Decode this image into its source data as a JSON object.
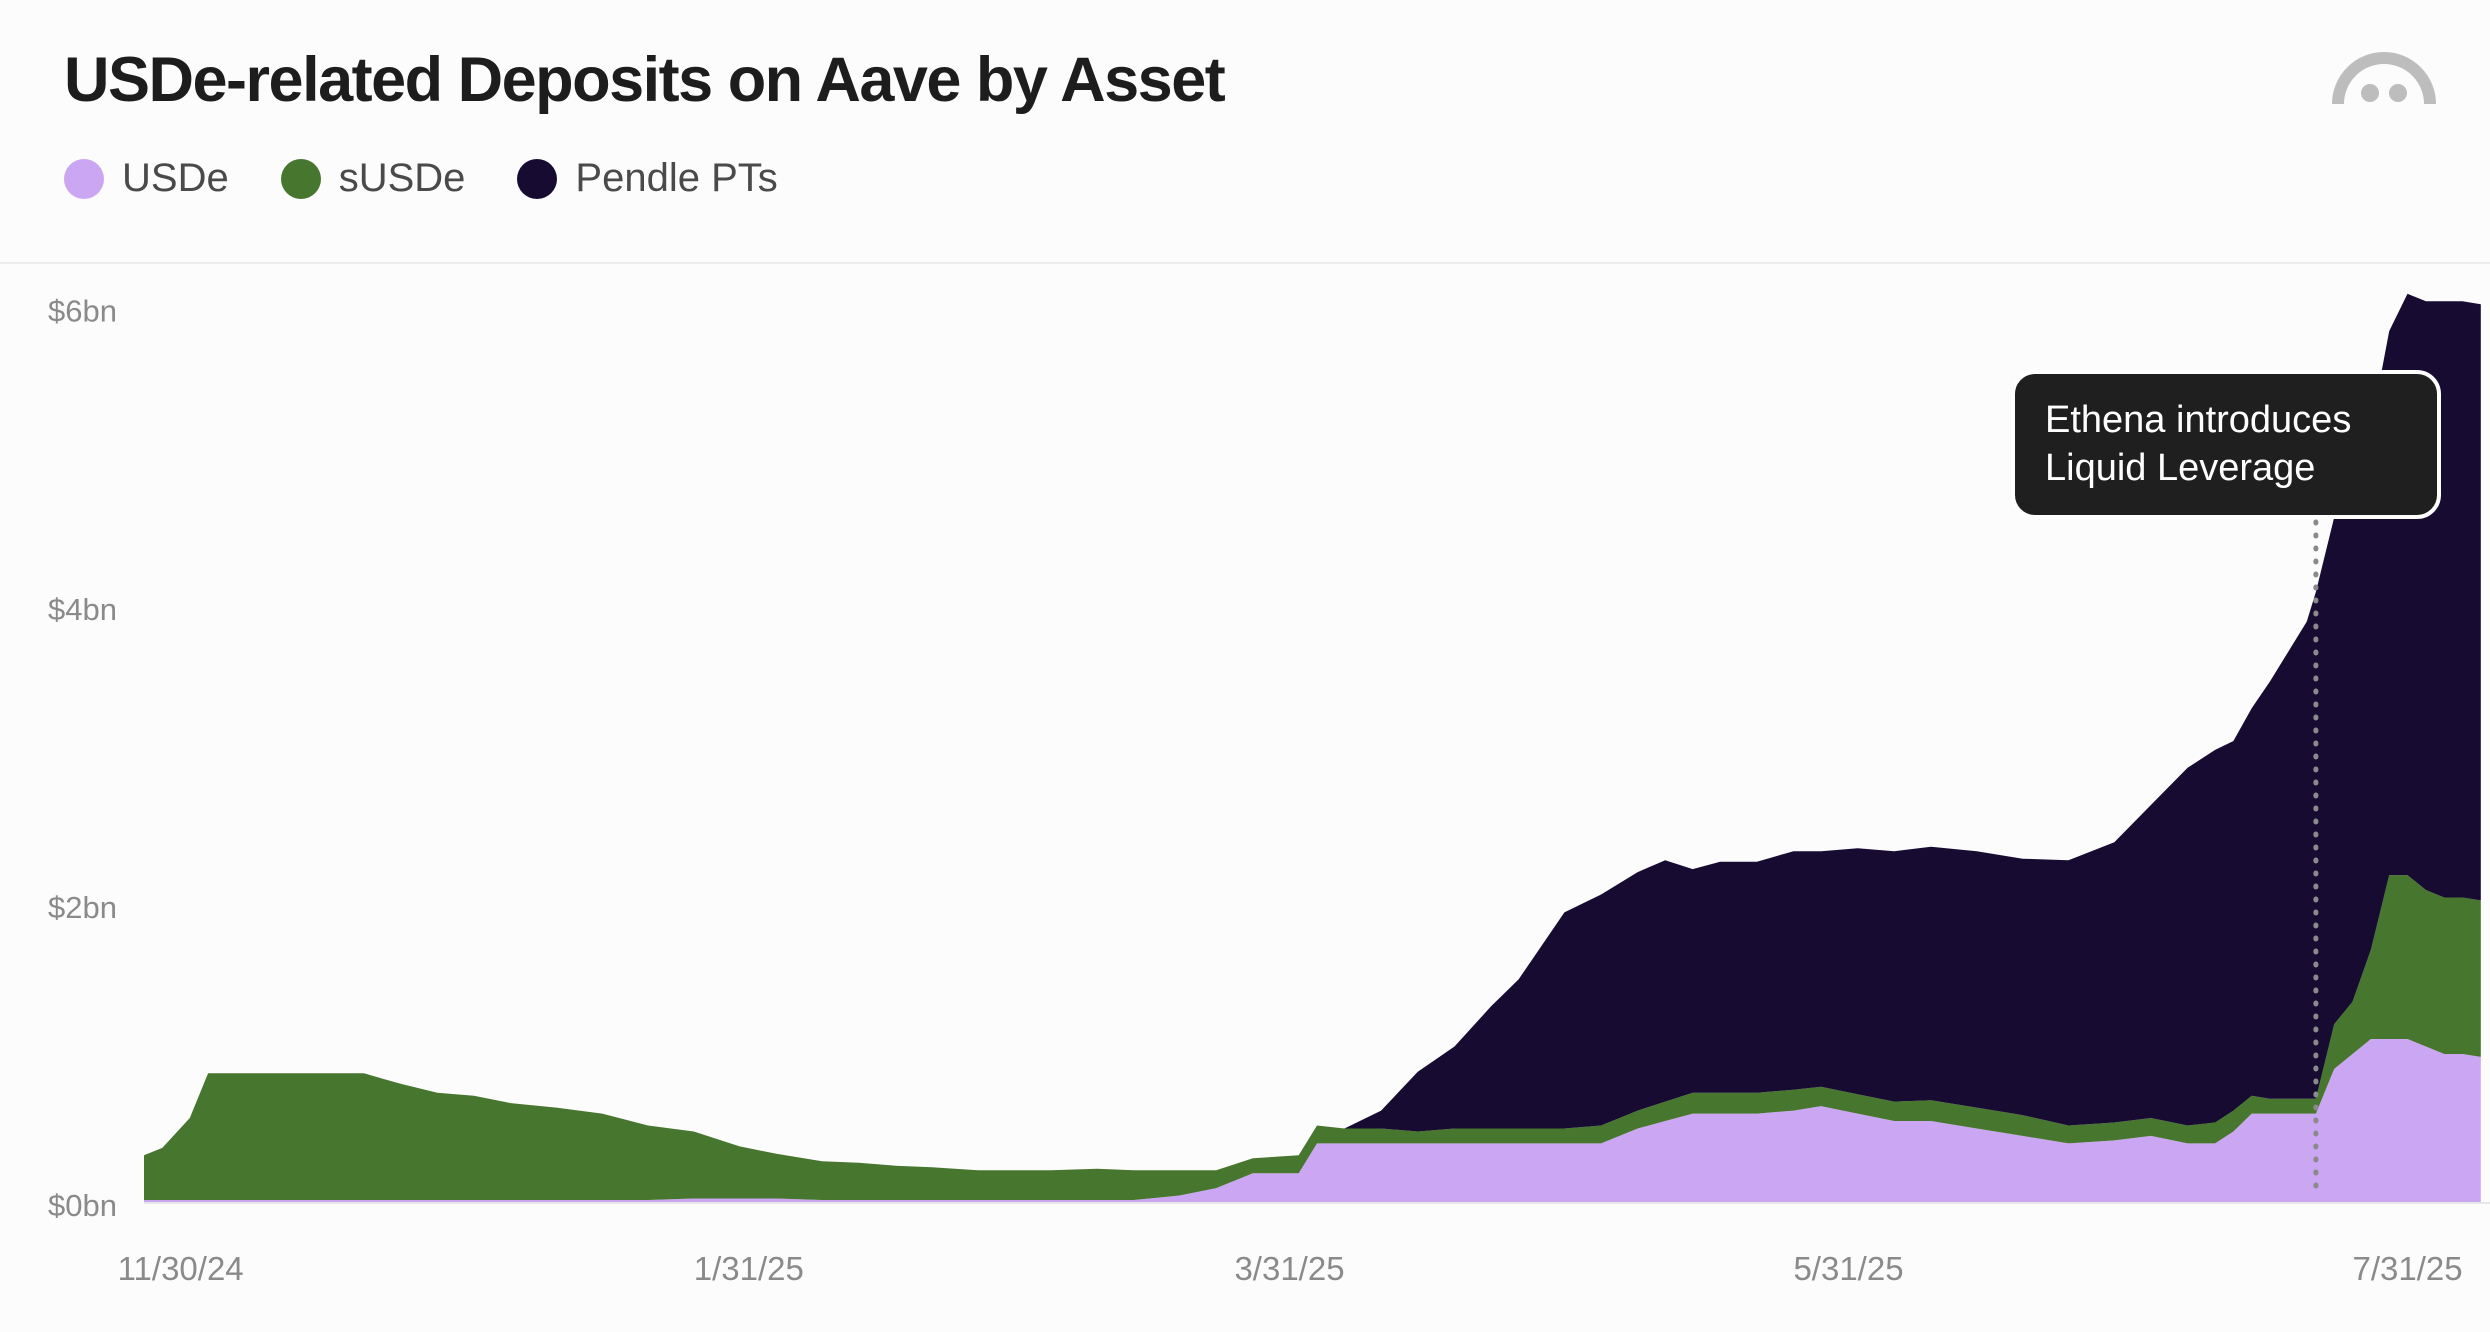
{
  "header": {
    "title": "USDe-related Deposits on Aave by Asset"
  },
  "legend": [
    {
      "label": "USDe",
      "color": "#cba6f2"
    },
    {
      "label": "sUSDe",
      "color": "#47762f"
    },
    {
      "label": "Pendle PTs",
      "color": "#170b31"
    }
  ],
  "logo": {
    "icon": "ethena-logo-icon"
  },
  "chart_data": {
    "type": "area",
    "stacked": true,
    "title": "USDe-related Deposits on Aave by Asset",
    "xlabel": "",
    "ylabel": "",
    "x_range": [
      "2024-11-26",
      "2025-08-09"
    ],
    "ylim": [
      0,
      6.3
    ],
    "y_ticks": [
      {
        "value": 0,
        "label": "$0bn"
      },
      {
        "value": 2,
        "label": "$2bn"
      },
      {
        "value": 4,
        "label": "$4bn"
      },
      {
        "value": 6,
        "label": "$6bn"
      }
    ],
    "x_ticks": [
      {
        "date": "2024-11-30",
        "label": "11/30/24"
      },
      {
        "date": "2025-01-31",
        "label": "1/31/25"
      },
      {
        "date": "2025-03-31",
        "label": "3/31/25"
      },
      {
        "date": "2025-05-31",
        "label": "5/31/25"
      },
      {
        "date": "2025-07-31",
        "label": "7/31/25"
      }
    ],
    "grid": false,
    "legend_position": "top-left",
    "x": [
      "2024-11-26",
      "2024-11-28",
      "2024-12-01",
      "2024-12-03",
      "2024-12-05",
      "2024-12-10",
      "2024-12-15",
      "2024-12-20",
      "2024-12-24",
      "2024-12-28",
      "2025-01-01",
      "2025-01-05",
      "2025-01-10",
      "2025-01-15",
      "2025-01-20",
      "2025-01-25",
      "2025-01-30",
      "2025-02-03",
      "2025-02-08",
      "2025-02-12",
      "2025-02-16",
      "2025-02-20",
      "2025-02-25",
      "2025-03-01",
      "2025-03-05",
      "2025-03-10",
      "2025-03-14",
      "2025-03-19",
      "2025-03-23",
      "2025-03-27",
      "2025-04-01",
      "2025-04-03",
      "2025-04-06",
      "2025-04-10",
      "2025-04-14",
      "2025-04-18",
      "2025-04-22",
      "2025-04-25",
      "2025-04-27",
      "2025-04-30",
      "2025-05-04",
      "2025-05-08",
      "2025-05-11",
      "2025-05-14",
      "2025-05-17",
      "2025-05-21",
      "2025-05-25",
      "2025-05-28",
      "2025-06-01",
      "2025-06-05",
      "2025-06-09",
      "2025-06-14",
      "2025-06-19",
      "2025-06-24",
      "2025-06-29",
      "2025-07-03",
      "2025-07-07",
      "2025-07-10",
      "2025-07-12",
      "2025-07-14",
      "2025-07-16",
      "2025-07-18",
      "2025-07-20",
      "2025-07-21",
      "2025-07-23",
      "2025-07-25",
      "2025-07-27",
      "2025-07-29",
      "2025-07-31",
      "2025-08-02",
      "2025-08-04",
      "2025-08-06",
      "2025-08-08"
    ],
    "series": [
      {
        "name": "USDe",
        "color": "#cba6f2",
        "values": [
          0.02,
          0.02,
          0.02,
          0.02,
          0.02,
          0.02,
          0.02,
          0.02,
          0.02,
          0.02,
          0.02,
          0.02,
          0.02,
          0.02,
          0.02,
          0.03,
          0.03,
          0.03,
          0.02,
          0.02,
          0.02,
          0.02,
          0.02,
          0.02,
          0.02,
          0.02,
          0.02,
          0.05,
          0.1,
          0.2,
          0.2,
          0.4,
          0.4,
          0.4,
          0.4,
          0.4,
          0.4,
          0.4,
          0.4,
          0.4,
          0.4,
          0.5,
          0.55,
          0.6,
          0.6,
          0.6,
          0.62,
          0.65,
          0.6,
          0.55,
          0.55,
          0.5,
          0.45,
          0.4,
          0.42,
          0.45,
          0.4,
          0.4,
          0.48,
          0.6,
          0.6,
          0.6,
          0.6,
          0.6,
          0.9,
          1.0,
          1.1,
          1.1,
          1.1,
          1.05,
          1.0,
          1.0,
          0.98
        ]
      },
      {
        "name": "sUSDe",
        "color": "#47762f",
        "values": [
          0.3,
          0.35,
          0.55,
          0.85,
          0.85,
          0.85,
          0.85,
          0.85,
          0.78,
          0.72,
          0.7,
          0.65,
          0.62,
          0.58,
          0.5,
          0.45,
          0.35,
          0.3,
          0.26,
          0.25,
          0.23,
          0.22,
          0.2,
          0.2,
          0.2,
          0.21,
          0.2,
          0.17,
          0.12,
          0.1,
          0.12,
          0.12,
          0.1,
          0.1,
          0.08,
          0.1,
          0.1,
          0.1,
          0.1,
          0.1,
          0.12,
          0.12,
          0.13,
          0.14,
          0.14,
          0.14,
          0.14,
          0.13,
          0.13,
          0.13,
          0.14,
          0.14,
          0.14,
          0.12,
          0.12,
          0.12,
          0.12,
          0.14,
          0.14,
          0.12,
          0.1,
          0.1,
          0.1,
          0.1,
          0.3,
          0.35,
          0.6,
          1.1,
          1.1,
          1.05,
          1.05,
          1.05,
          1.05
        ]
      },
      {
        "name": "Pendle PTs",
        "color": "#170b31",
        "values": [
          0,
          0,
          0,
          0,
          0,
          0,
          0,
          0,
          0,
          0,
          0,
          0,
          0,
          0,
          0,
          0,
          0,
          0,
          0,
          0,
          0,
          0,
          0,
          0,
          0,
          0,
          0,
          0,
          0,
          0,
          0,
          0,
          0,
          0.12,
          0.4,
          0.55,
          0.82,
          1.0,
          1.18,
          1.45,
          1.55,
          1.6,
          1.62,
          1.5,
          1.55,
          1.55,
          1.6,
          1.58,
          1.65,
          1.68,
          1.7,
          1.72,
          1.72,
          1.78,
          1.88,
          2.1,
          2.4,
          2.5,
          2.48,
          2.6,
          2.8,
          3.0,
          3.2,
          3.4,
          3.4,
          3.5,
          3.5,
          3.65,
          3.9,
          3.95,
          4.0,
          4.0,
          4.0
        ]
      }
    ],
    "annotation": {
      "date": "2025-07-21",
      "label_line1": "Ethena introduces",
      "label_line2": "Liquid Leverage"
    }
  }
}
